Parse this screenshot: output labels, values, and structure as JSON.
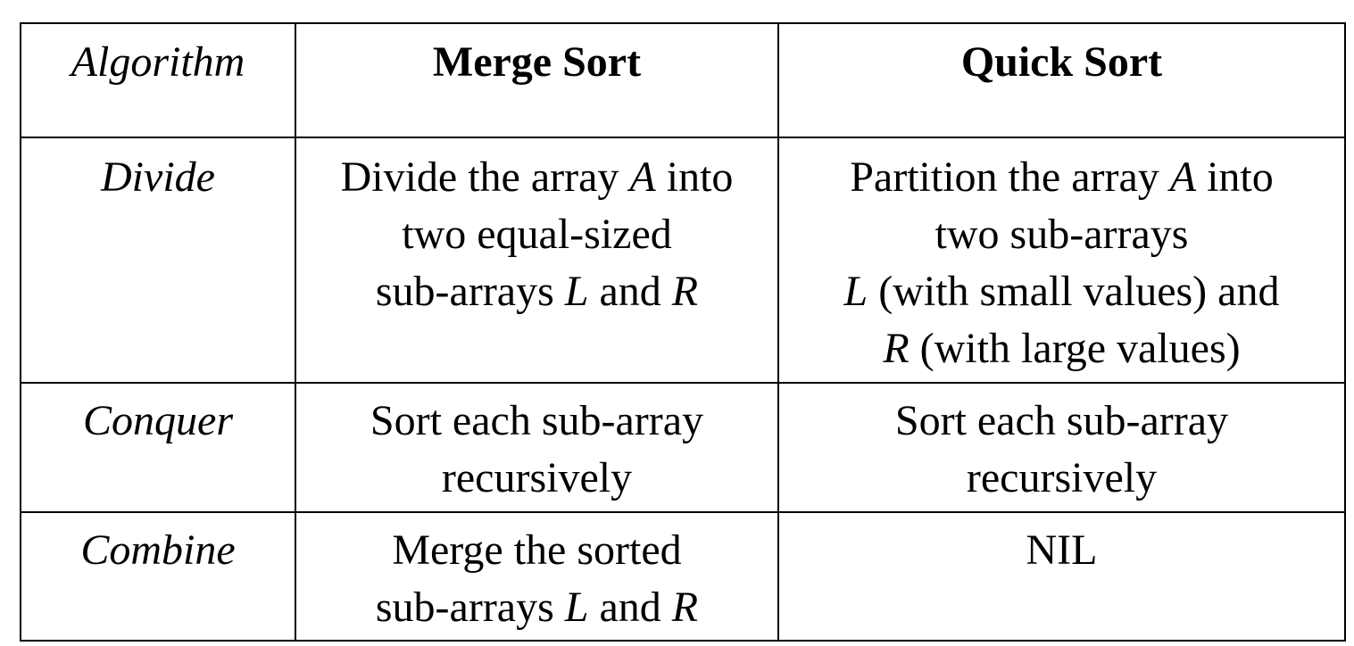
{
  "table": {
    "header": {
      "row_label": "Algorithm",
      "col1": "Merge Sort",
      "col2": "Quick Sort"
    },
    "rows": [
      {
        "label": "Divide",
        "merge_sort": {
          "l1_pre": "Divide the array ",
          "l1_var": "A",
          "l1_post": " into",
          "l2": "two equal-sized",
          "l3_pre": "sub-arrays ",
          "l3_var1": "L",
          "l3_mid": " and ",
          "l3_var2": "R"
        },
        "quick_sort": {
          "l1_pre": "Partition the array ",
          "l1_var": "A",
          "l1_post": " into",
          "l2": "two sub-arrays",
          "l3_var": "L",
          "l3_post": " (with small values) and",
          "l4_var": "R",
          "l4_post": " (with large values)"
        }
      },
      {
        "label": "Conquer",
        "merge_sort": {
          "l1": "Sort each sub-array",
          "l2": "recursively"
        },
        "quick_sort": {
          "l1": "Sort each sub-array",
          "l2": "recursively"
        }
      },
      {
        "label": "Combine",
        "merge_sort": {
          "l1": "Merge the sorted",
          "l2_pre": "sub-arrays ",
          "l2_var1": "L",
          "l2_mid": " and ",
          "l2_var2": "R"
        },
        "quick_sort": {
          "l1": "NIL"
        }
      }
    ]
  }
}
